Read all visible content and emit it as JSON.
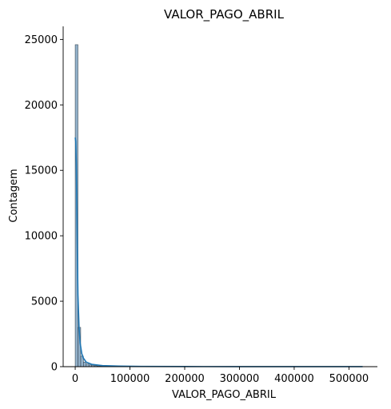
{
  "chart_data": {
    "type": "histogram",
    "title": "VALOR_PAGO_ABRIL",
    "xlabel": "VALOR_PAGO_ABRIL",
    "ylabel": "Contagem",
    "xlim": [
      -22000,
      552000
    ],
    "ylim": [
      0,
      26000
    ],
    "xticks": [
      0,
      100000,
      200000,
      300000,
      400000,
      500000
    ],
    "yticks": [
      0,
      5000,
      10000,
      15000,
      20000,
      25000
    ],
    "grid": false,
    "bar_color": "#6f97b8",
    "kde_color": "#1f77b4",
    "bins": [
      {
        "x0": 0,
        "x1": 5000,
        "count": 24600
      },
      {
        "x0": 5000,
        "x1": 10000,
        "count": 3000
      },
      {
        "x0": 10000,
        "x1": 15000,
        "count": 800
      },
      {
        "x0": 15000,
        "x1": 20000,
        "count": 350
      },
      {
        "x0": 20000,
        "x1": 25000,
        "count": 200
      },
      {
        "x0": 25000,
        "x1": 30000,
        "count": 130
      },
      {
        "x0": 30000,
        "x1": 35000,
        "count": 90
      },
      {
        "x0": 35000,
        "x1": 40000,
        "count": 70
      },
      {
        "x0": 40000,
        "x1": 45000,
        "count": 55
      },
      {
        "x0": 45000,
        "x1": 50000,
        "count": 45
      },
      {
        "x0": 50000,
        "x1": 55000,
        "count": 35
      },
      {
        "x0": 55000,
        "x1": 60000,
        "count": 25
      },
      {
        "x0": 60000,
        "x1": 65000,
        "count": 20
      },
      {
        "x0": 65000,
        "x1": 70000,
        "count": 15
      },
      {
        "x0": 70000,
        "x1": 75000,
        "count": 12
      },
      {
        "x0": 75000,
        "x1": 80000,
        "count": 10
      },
      {
        "x0": 80000,
        "x1": 85000,
        "count": 8
      },
      {
        "x0": 85000,
        "x1": 90000,
        "count": 6
      },
      {
        "x0": 90000,
        "x1": 95000,
        "count": 5
      },
      {
        "x0": 95000,
        "x1": 100000,
        "count": 4
      }
    ],
    "kde": {
      "x": [
        0,
        1000,
        2000,
        3000,
        4000,
        5000,
        7000,
        9000,
        12000,
        15000,
        20000,
        30000,
        50000,
        80000,
        120000,
        200000,
        300000,
        400000,
        500000,
        525000
      ],
      "y": [
        17500,
        17200,
        15500,
        12000,
        8500,
        5500,
        3000,
        1800,
        1000,
        650,
        350,
        180,
        80,
        40,
        20,
        10,
        5,
        3,
        2,
        1
      ]
    }
  }
}
